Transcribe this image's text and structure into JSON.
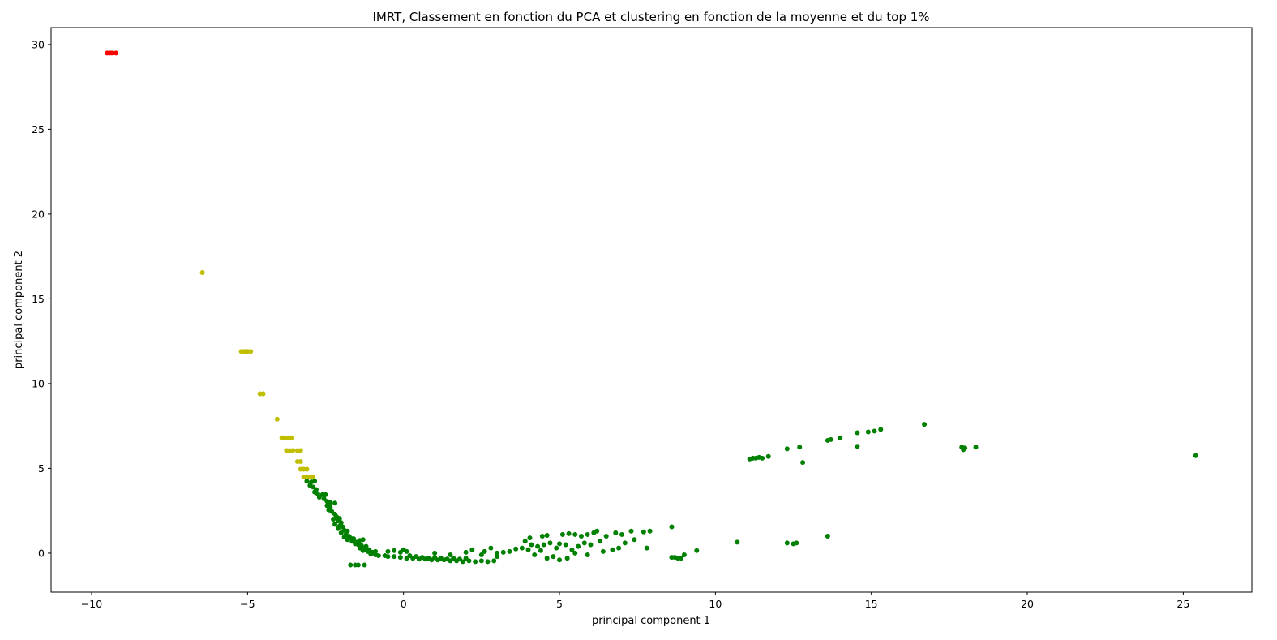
{
  "chart_data": {
    "type": "scatter",
    "title": "IMRT, Classement en fonction du PCA et clustering en fonction de la moyenne et du top 1%",
    "xlabel": "principal component 1",
    "ylabel": "principal component 2",
    "xlim": [
      -11.3,
      27.2
    ],
    "ylim": [
      -2.3,
      31.0
    ],
    "xticks": [
      -10,
      -5,
      0,
      5,
      10,
      15,
      20,
      25
    ],
    "yticks": [
      0,
      5,
      10,
      15,
      20,
      25,
      30
    ],
    "grid": false,
    "legend": "none",
    "series": [
      {
        "color": "#ff0000",
        "points": [
          [
            -9.5,
            29.5
          ],
          [
            -9.42,
            29.5
          ],
          [
            -9.35,
            29.5
          ],
          [
            -9.22,
            29.5
          ]
        ]
      },
      {
        "color": "#bfbf00",
        "points": [
          [
            -6.45,
            16.55
          ],
          [
            -5.2,
            11.9
          ],
          [
            -5.1,
            11.9
          ],
          [
            -5.0,
            11.9
          ],
          [
            -4.9,
            11.9
          ],
          [
            -4.6,
            9.4
          ],
          [
            -4.5,
            9.4
          ],
          [
            -4.05,
            7.9
          ],
          [
            -3.9,
            6.8
          ],
          [
            -3.8,
            6.8
          ],
          [
            -3.7,
            6.8
          ],
          [
            -3.6,
            6.8
          ],
          [
            -3.75,
            6.05
          ],
          [
            -3.65,
            6.05
          ],
          [
            -3.55,
            6.05
          ],
          [
            -3.4,
            6.05
          ],
          [
            -3.3,
            6.05
          ],
          [
            -3.4,
            5.4
          ],
          [
            -3.3,
            5.4
          ],
          [
            -3.3,
            4.95
          ],
          [
            -3.2,
            4.95
          ],
          [
            -3.1,
            4.95
          ],
          [
            -3.2,
            4.5
          ],
          [
            -3.1,
            4.5
          ],
          [
            -3.0,
            4.5
          ],
          [
            -2.9,
            4.5
          ]
        ]
      },
      {
        "color": "#008000",
        "points": [
          [
            -3.1,
            4.25
          ],
          [
            -2.95,
            4.2
          ],
          [
            -2.85,
            4.25
          ],
          [
            -3.0,
            4.0
          ],
          [
            -2.9,
            3.9
          ],
          [
            -2.8,
            3.75
          ],
          [
            -2.85,
            3.6
          ],
          [
            -2.75,
            3.5
          ],
          [
            -2.6,
            3.45
          ],
          [
            -2.5,
            3.45
          ],
          [
            -2.7,
            3.3
          ],
          [
            -2.55,
            3.2
          ],
          [
            -2.45,
            3.05
          ],
          [
            -2.35,
            3.0
          ],
          [
            -2.2,
            2.95
          ],
          [
            -2.45,
            2.8
          ],
          [
            -2.35,
            2.7
          ],
          [
            -2.4,
            2.55
          ],
          [
            -2.3,
            2.45
          ],
          [
            -2.2,
            2.3
          ],
          [
            -2.15,
            2.15
          ],
          [
            -2.05,
            2.05
          ],
          [
            -2.25,
            2.0
          ],
          [
            -2.1,
            1.9
          ],
          [
            -2.0,
            1.8
          ],
          [
            -2.2,
            1.7
          ],
          [
            -2.05,
            1.6
          ],
          [
            -1.95,
            1.55
          ],
          [
            -2.1,
            1.45
          ],
          [
            -1.9,
            1.35
          ],
          [
            -1.8,
            1.3
          ],
          [
            -2.0,
            1.2
          ],
          [
            -1.85,
            1.1
          ],
          [
            -1.75,
            1.0
          ],
          [
            -1.9,
            0.95
          ],
          [
            -1.7,
            0.9
          ],
          [
            -1.6,
            0.85
          ],
          [
            -1.8,
            0.8
          ],
          [
            -1.65,
            0.7
          ],
          [
            -1.5,
            0.65
          ],
          [
            -1.4,
            0.75
          ],
          [
            -1.3,
            0.8
          ],
          [
            -1.55,
            0.55
          ],
          [
            -1.45,
            0.5
          ],
          [
            -1.35,
            0.45
          ],
          [
            -1.2,
            0.4
          ],
          [
            -1.4,
            0.3
          ],
          [
            -1.25,
            0.25
          ],
          [
            -1.1,
            0.2
          ],
          [
            -1.3,
            0.15
          ],
          [
            -1.15,
            0.1
          ],
          [
            -1.0,
            0.05
          ],
          [
            -0.9,
            0.1
          ],
          [
            -1.05,
            -0.05
          ],
          [
            -0.9,
            -0.1
          ],
          [
            -0.8,
            -0.15
          ],
          [
            -0.6,
            -0.15
          ],
          [
            -0.5,
            -0.2
          ],
          [
            -0.3,
            -0.2
          ],
          [
            -0.1,
            -0.25
          ],
          [
            0.1,
            -0.3
          ],
          [
            0.3,
            -0.3
          ],
          [
            0.5,
            -0.35
          ],
          [
            0.7,
            -0.35
          ],
          [
            0.9,
            -0.4
          ],
          [
            1.1,
            -0.4
          ],
          [
            1.3,
            -0.4
          ],
          [
            1.5,
            -0.45
          ],
          [
            1.7,
            -0.45
          ],
          [
            1.9,
            -0.5
          ],
          [
            2.1,
            -0.45
          ],
          [
            2.3,
            -0.5
          ],
          [
            2.5,
            -0.45
          ],
          [
            2.7,
            -0.5
          ],
          [
            2.9,
            -0.45
          ],
          [
            0.2,
            -0.15
          ],
          [
            0.4,
            -0.2
          ],
          [
            0.6,
            -0.25
          ],
          [
            0.8,
            -0.3
          ],
          [
            1.0,
            -0.25
          ],
          [
            1.2,
            -0.3
          ],
          [
            1.4,
            -0.35
          ],
          [
            1.6,
            -0.3
          ],
          [
            1.8,
            -0.35
          ],
          [
            2.0,
            -0.3
          ],
          [
            -0.5,
            0.1
          ],
          [
            -0.3,
            0.15
          ],
          [
            -0.1,
            0.05
          ],
          [
            0.0,
            0.2
          ],
          [
            0.1,
            0.1
          ],
          [
            1.0,
            0.0
          ],
          [
            1.5,
            -0.1
          ],
          [
            2.0,
            0.05
          ],
          [
            2.5,
            -0.1
          ],
          [
            3.0,
            0.0
          ],
          [
            -1.7,
            -0.7
          ],
          [
            -1.55,
            -0.7
          ],
          [
            -1.45,
            -0.7
          ],
          [
            -1.25,
            -0.7
          ],
          [
            2.2,
            0.2
          ],
          [
            2.6,
            0.1
          ],
          [
            2.8,
            0.3
          ],
          [
            3.0,
            -0.2
          ],
          [
            3.2,
            0.05
          ],
          [
            3.4,
            0.1
          ],
          [
            3.6,
            0.25
          ],
          [
            3.8,
            0.3
          ],
          [
            4.0,
            0.2
          ],
          [
            4.1,
            0.5
          ],
          [
            4.3,
            0.4
          ],
          [
            4.5,
            0.5
          ],
          [
            4.7,
            0.6
          ],
          [
            3.9,
            0.7
          ],
          [
            4.05,
            0.9
          ],
          [
            4.2,
            -0.1
          ],
          [
            4.4,
            0.15
          ],
          [
            4.6,
            -0.3
          ],
          [
            4.8,
            -0.2
          ],
          [
            4.9,
            0.3
          ],
          [
            4.45,
            1.0
          ],
          [
            4.6,
            1.05
          ],
          [
            5.0,
            0.55
          ],
          [
            5.1,
            1.1
          ],
          [
            5.3,
            1.15
          ],
          [
            5.5,
            1.1
          ],
          [
            5.7,
            1.0
          ],
          [
            5.9,
            1.1
          ],
          [
            6.1,
            1.2
          ],
          [
            6.2,
            1.3
          ],
          [
            5.2,
            0.5
          ],
          [
            5.4,
            0.2
          ],
          [
            5.6,
            0.4
          ],
          [
            5.8,
            0.6
          ],
          [
            6.0,
            0.5
          ],
          [
            6.3,
            0.7
          ],
          [
            6.5,
            1.0
          ],
          [
            6.8,
            1.2
          ],
          [
            7.0,
            1.1
          ],
          [
            7.3,
            1.3
          ],
          [
            5.0,
            -0.4
          ],
          [
            5.25,
            -0.3
          ],
          [
            5.5,
            0.0
          ],
          [
            5.9,
            -0.1
          ],
          [
            6.4,
            0.1
          ],
          [
            6.7,
            0.2
          ],
          [
            6.9,
            0.3
          ],
          [
            7.1,
            0.6
          ],
          [
            7.4,
            0.8
          ],
          [
            7.7,
            1.25
          ],
          [
            7.9,
            1.3
          ],
          [
            7.8,
            0.3
          ],
          [
            8.6,
            1.55
          ],
          [
            8.6,
            -0.25
          ],
          [
            8.7,
            -0.25
          ],
          [
            8.8,
            -0.3
          ],
          [
            8.9,
            -0.3
          ],
          [
            9.0,
            -0.1
          ],
          [
            9.4,
            0.15
          ],
          [
            10.7,
            0.65
          ],
          [
            11.1,
            5.55
          ],
          [
            11.2,
            5.6
          ],
          [
            11.3,
            5.6
          ],
          [
            11.4,
            5.65
          ],
          [
            11.5,
            5.6
          ],
          [
            11.7,
            5.7
          ],
          [
            12.3,
            6.15
          ],
          [
            12.7,
            6.25
          ],
          [
            12.8,
            5.35
          ],
          [
            12.3,
            0.6
          ],
          [
            12.5,
            0.55
          ],
          [
            12.6,
            0.6
          ],
          [
            13.6,
            1.0
          ],
          [
            13.6,
            6.65
          ],
          [
            13.7,
            6.7
          ],
          [
            14.0,
            6.8
          ],
          [
            14.55,
            7.1
          ],
          [
            14.55,
            6.3
          ],
          [
            14.9,
            7.15
          ],
          [
            15.1,
            7.2
          ],
          [
            15.3,
            7.3
          ],
          [
            16.7,
            7.6
          ],
          [
            17.9,
            6.25
          ],
          [
            17.95,
            6.1
          ],
          [
            18.0,
            6.2
          ],
          [
            18.35,
            6.25
          ],
          [
            25.4,
            5.75
          ]
        ]
      }
    ]
  }
}
